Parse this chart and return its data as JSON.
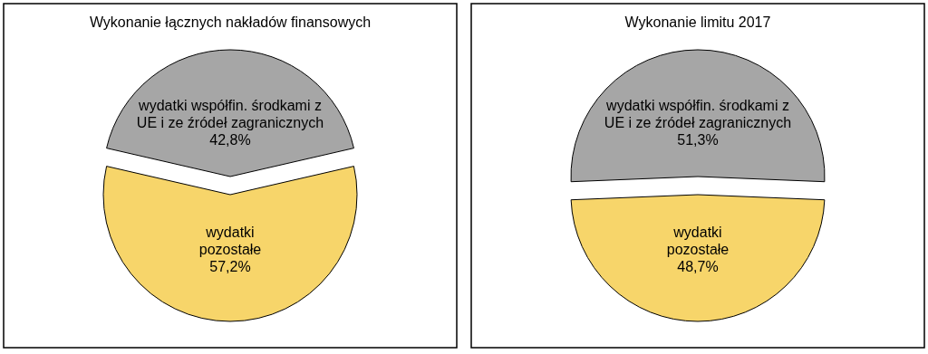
{
  "chart_data": [
    {
      "type": "pie",
      "title": "Wykonanie łącznych nakładów finansowych",
      "categories": [
        "wydatki współfin. środkami z\nUE i ze źródeł zagranicznych",
        "wydatki\npozostałe"
      ],
      "values": [
        42.8,
        57.2
      ],
      "value_labels": [
        "42,8%",
        "57,2%"
      ],
      "colors": [
        "#a6a6a6",
        "#f7d56a"
      ]
    },
    {
      "type": "pie",
      "title": "Wykonanie limitu 2017",
      "categories": [
        "wydatki współfin. środkami z\nUE i ze źródeł zagranicznych",
        "wydatki\npozostałe"
      ],
      "values": [
        51.3,
        48.7
      ],
      "value_labels": [
        "51,3%",
        "48,7%"
      ],
      "colors": [
        "#a6a6a6",
        "#f7d56a"
      ]
    }
  ]
}
